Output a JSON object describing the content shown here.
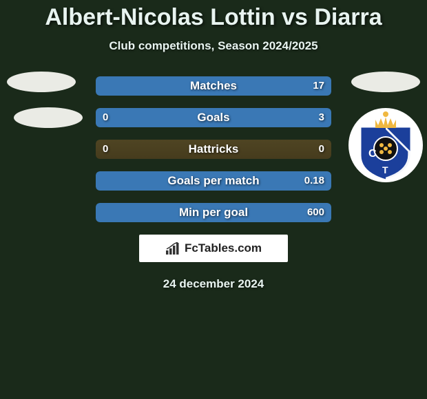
{
  "title": "Albert-Nicolas Lottin vs Diarra",
  "subtitle": "Club competitions, Season 2024/2025",
  "date": "24 december 2024",
  "watermark": "FcTables.com",
  "colors": {
    "bar_left": "#c77d2e",
    "bar_right": "#3a78b5",
    "bar_bg_tint": "#3a78b5",
    "title_text": "#e8f4f0",
    "background": "#1a2a1a"
  },
  "bars": [
    {
      "label": "Matches",
      "left": "",
      "right": "17",
      "left_pct": 0,
      "right_pct": 100
    },
    {
      "label": "Goals",
      "left": "0",
      "right": "3",
      "left_pct": 0,
      "right_pct": 100
    },
    {
      "label": "Hattricks",
      "left": "0",
      "right": "0",
      "left_pct": 0,
      "right_pct": 0
    },
    {
      "label": "Goals per match",
      "left": "",
      "right": "0.18",
      "left_pct": 0,
      "right_pct": 100
    },
    {
      "label": "Min per goal",
      "left": "",
      "right": "600",
      "left_pct": 0,
      "right_pct": 100
    }
  ],
  "badge_colors": {
    "shield": "#1b3f9b",
    "stripe": "#ffffff",
    "crown": "#f0b840",
    "center": "#111111"
  }
}
